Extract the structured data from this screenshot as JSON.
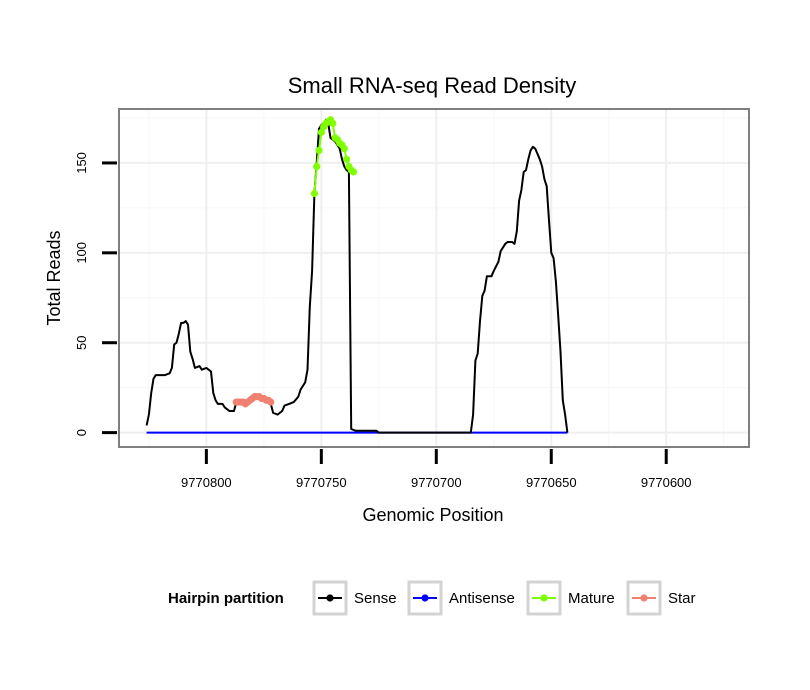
{
  "chart_data": {
    "type": "line",
    "title": "Small RNA-seq Read Density",
    "xlabel": "Genomic Position",
    "ylabel": "Total Reads",
    "xlim": [
      9770838,
      9770564
    ],
    "ylim": [
      -8,
      180
    ],
    "x_reversed": true,
    "x_ticks": [
      9770800,
      9770750,
      9770700,
      9770650,
      9770600
    ],
    "x_tick_labels": [
      "9770800",
      "9770750",
      "9770700",
      "9770650",
      "9770600"
    ],
    "y_ticks": [
      0,
      50,
      100,
      150
    ],
    "y_tick_labels": [
      "0",
      "50",
      "100",
      "150"
    ],
    "grid": true,
    "legend": {
      "title": "Hairpin partition",
      "position": "bottom",
      "entries": [
        "Sense",
        "Antisense",
        "Mature",
        "Star"
      ]
    },
    "series": [
      {
        "name": "Sense",
        "color": "#000000",
        "marker": false,
        "points": [
          [
            9770826,
            4
          ],
          [
            9770825,
            10
          ],
          [
            9770824,
            22
          ],
          [
            9770823,
            30
          ],
          [
            9770822,
            32
          ],
          [
            9770820,
            32
          ],
          [
            9770818,
            32
          ],
          [
            9770816,
            33
          ],
          [
            9770815,
            36
          ],
          [
            9770814,
            49
          ],
          [
            9770813,
            50
          ],
          [
            9770812,
            55
          ],
          [
            9770811,
            61
          ],
          [
            9770810,
            61
          ],
          [
            9770809,
            62
          ],
          [
            9770808,
            60
          ],
          [
            9770807,
            45
          ],
          [
            9770806,
            41
          ],
          [
            9770805,
            36
          ],
          [
            9770803,
            37
          ],
          [
            9770802,
            35
          ],
          [
            9770800,
            36
          ],
          [
            9770798,
            34
          ],
          [
            9770797,
            22
          ],
          [
            9770796,
            18
          ],
          [
            9770795,
            16
          ],
          [
            9770793,
            16
          ],
          [
            9770792,
            14
          ],
          [
            9770790,
            12
          ],
          [
            9770788,
            12
          ],
          [
            9770787,
            17
          ],
          [
            9770785,
            18
          ],
          [
            9770783,
            17
          ],
          [
            9770781,
            19
          ],
          [
            9770779,
            21
          ],
          [
            9770777,
            20
          ],
          [
            9770775,
            19
          ],
          [
            9770773,
            18
          ],
          [
            9770772,
            16
          ],
          [
            9770771,
            11
          ],
          [
            9770769,
            10
          ],
          [
            9770767,
            12
          ],
          [
            9770766,
            15
          ],
          [
            9770764,
            16
          ],
          [
            9770762,
            17
          ],
          [
            9770760,
            20
          ],
          [
            9770759,
            24
          ],
          [
            9770757,
            28
          ],
          [
            9770756,
            35
          ],
          [
            9770755,
            70
          ],
          [
            9770754,
            90
          ],
          [
            9770753,
            133
          ],
          [
            9770752,
            150
          ],
          [
            9770751,
            169
          ],
          [
            9770750,
            171
          ],
          [
            9770749,
            172
          ],
          [
            9770748,
            174
          ],
          [
            9770747,
            172
          ],
          [
            9770746,
            164
          ],
          [
            9770745,
            163
          ],
          [
            9770744,
            162
          ],
          [
            9770743,
            160
          ],
          [
            9770742,
            158
          ],
          [
            9770741,
            152
          ],
          [
            9770740,
            148
          ],
          [
            9770739,
            146
          ],
          [
            9770738,
            145
          ],
          [
            9770737,
            2
          ],
          [
            9770735,
            1
          ],
          [
            9770730,
            1
          ],
          [
            9770726,
            1
          ],
          [
            9770725,
            0
          ],
          [
            9770700,
            0
          ],
          [
            9770685,
            0
          ],
          [
            9770684,
            10
          ],
          [
            9770683,
            40
          ],
          [
            9770682,
            44
          ],
          [
            9770681,
            62
          ],
          [
            9770680,
            76
          ],
          [
            9770679,
            79
          ],
          [
            9770678,
            87
          ],
          [
            9770676,
            87
          ],
          [
            9770675,
            90
          ],
          [
            9770673,
            95
          ],
          [
            9770672,
            101
          ],
          [
            9770671,
            103
          ],
          [
            9770670,
            105
          ],
          [
            9770669,
            106
          ],
          [
            9770667,
            106
          ],
          [
            9770666,
            105
          ],
          [
            9770665,
            112
          ],
          [
            9770664,
            129
          ],
          [
            9770663,
            135
          ],
          [
            9770662,
            145
          ],
          [
            9770661,
            146
          ],
          [
            9770660,
            152
          ],
          [
            9770659,
            157
          ],
          [
            9770658,
            159
          ],
          [
            9770657,
            158
          ],
          [
            9770656,
            155
          ],
          [
            9770655,
            152
          ],
          [
            9770654,
            148
          ],
          [
            9770653,
            141
          ],
          [
            9770652,
            137
          ],
          [
            9770651,
            118
          ],
          [
            9770650,
            100
          ],
          [
            9770649,
            97
          ],
          [
            9770648,
            84
          ],
          [
            9770647,
            65
          ],
          [
            9770646,
            45
          ],
          [
            9770645,
            18
          ],
          [
            9770644,
            10
          ],
          [
            9770643,
            0
          ]
        ]
      },
      {
        "name": "Antisense",
        "color": "#0000ff",
        "marker": false,
        "points": [
          [
            9770826,
            0
          ],
          [
            9770643,
            0
          ]
        ]
      },
      {
        "name": "Mature",
        "color": "#7fff00",
        "marker": true,
        "points": [
          [
            9770753,
            133
          ],
          [
            9770752,
            148
          ],
          [
            9770751,
            157
          ],
          [
            9770750,
            167
          ],
          [
            9770749,
            170
          ],
          [
            9770748,
            172
          ],
          [
            9770747,
            173
          ],
          [
            9770746,
            174
          ],
          [
            9770745,
            172
          ],
          [
            9770744,
            164
          ],
          [
            9770743,
            163
          ],
          [
            9770742,
            161
          ],
          [
            9770741,
            160
          ],
          [
            9770740,
            158
          ],
          [
            9770739,
            152
          ],
          [
            9770738,
            148
          ],
          [
            9770737,
            146
          ],
          [
            9770736,
            145
          ]
        ]
      },
      {
        "name": "Star",
        "color": "#f08070",
        "marker": true,
        "points": [
          [
            9770787,
            17
          ],
          [
            9770786,
            17
          ],
          [
            9770785,
            17
          ],
          [
            9770784,
            17
          ],
          [
            9770783,
            16
          ],
          [
            9770782,
            17
          ],
          [
            9770781,
            18
          ],
          [
            9770780,
            19
          ],
          [
            9770779,
            20
          ],
          [
            9770778,
            20
          ],
          [
            9770777,
            20
          ],
          [
            9770776,
            19
          ],
          [
            9770775,
            19
          ],
          [
            9770774,
            18
          ],
          [
            9770773,
            18
          ],
          [
            9770772,
            17
          ]
        ]
      }
    ]
  }
}
